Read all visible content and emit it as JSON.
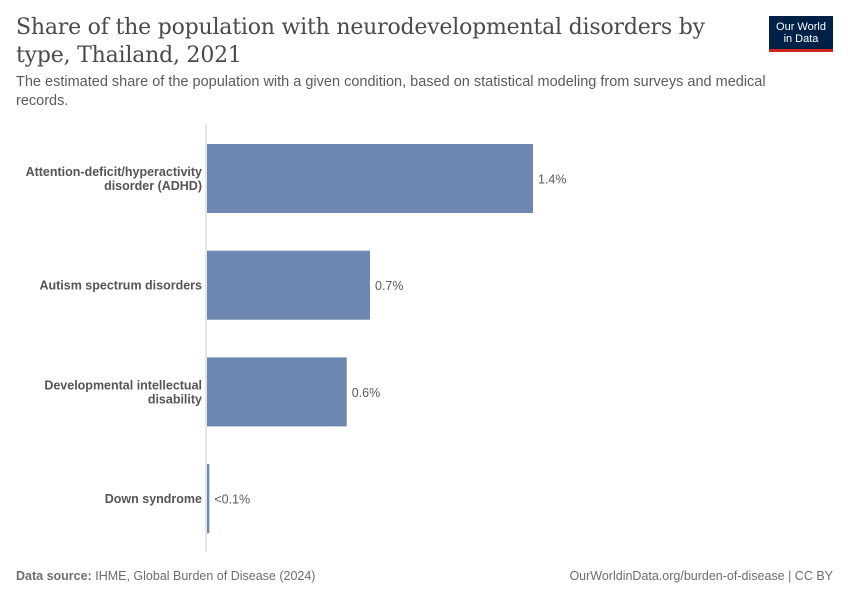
{
  "header": {
    "title": "Share of the population with neurodevelopmental disorders by type, Thailand, 2021",
    "subtitle": "The estimated share of the population with a given condition, based on statistical modeling from surveys and medical records.",
    "logo_line1": "Our World",
    "logo_line2": "in Data"
  },
  "footer": {
    "source_label": "Data source:",
    "source_text": "IHME, Global Burden of Disease (2024)",
    "url_text": "OurWorldinData.org/burden-of-disease | CC BY"
  },
  "colors": {
    "bar": "#6d87b0",
    "axis": "#cccccc",
    "logo_bg": "#002147",
    "logo_accent": "#ce261e"
  },
  "chart_data": {
    "type": "bar",
    "orientation": "horizontal",
    "categories": [
      [
        "Attention-deficit/hyperactivity",
        "disorder (ADHD)"
      ],
      [
        "Autism spectrum disorders"
      ],
      [
        "Developmental intellectual",
        "disability"
      ],
      [
        "Down syndrome"
      ]
    ],
    "values": [
      1.4,
      0.7,
      0.6,
      0.01
    ],
    "value_labels": [
      "1.4%",
      "0.7%",
      "0.6%",
      "<0.1%"
    ],
    "unit": "%",
    "xlim": [
      0,
      1.4
    ],
    "grid": false,
    "legend": "none"
  }
}
